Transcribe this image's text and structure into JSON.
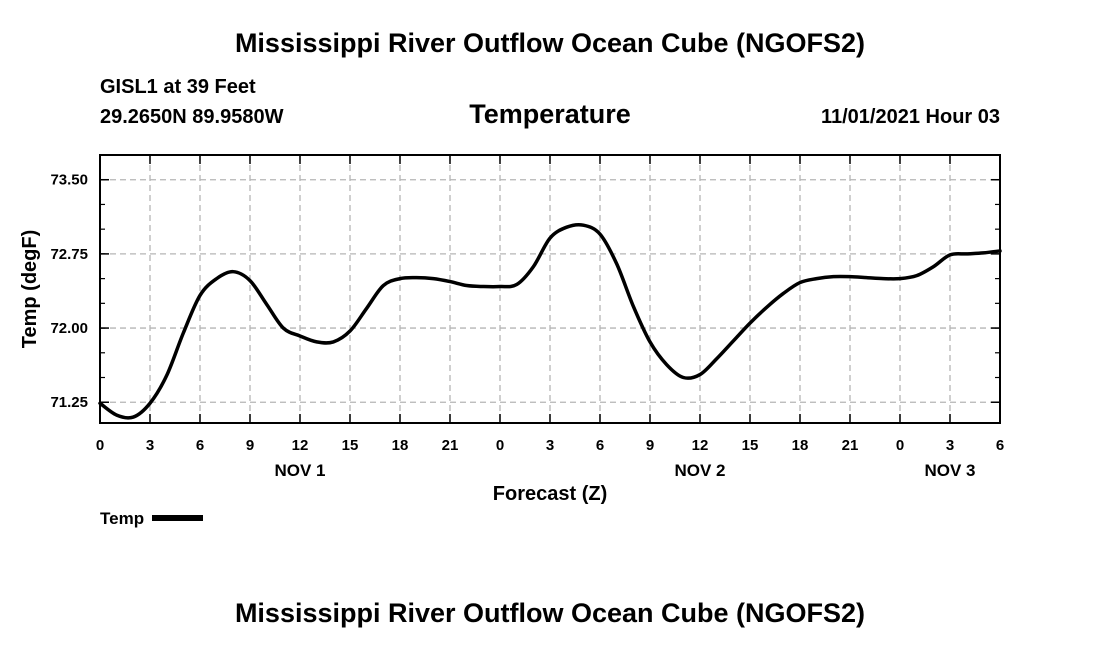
{
  "header": {
    "title": "Mississippi River Outflow Ocean Cube (NGOFS2)",
    "station": "GISL1 at 39 Feet",
    "coords": "29.2650N  89.9580W",
    "subtitle": "Temperature",
    "datetime": "11/01/2021 Hour 03"
  },
  "footer": {
    "title": "Mississippi River Outflow Ocean Cube (NGOFS2)"
  },
  "legend": {
    "label": "Temp",
    "color": "#000000"
  },
  "chart_data": {
    "type": "line",
    "title": "Temperature",
    "xlabel": "Forecast (Z)",
    "ylabel": "Temp (degF)",
    "xlim": [
      0,
      54
    ],
    "ylim": [
      71.04,
      73.75
    ],
    "yticks": [
      71.25,
      72.0,
      72.75,
      73.5
    ],
    "ytick_labels": [
      "71.25",
      "72.00",
      "72.75",
      "73.50"
    ],
    "xticks": [
      0,
      3,
      6,
      9,
      12,
      15,
      18,
      21,
      24,
      27,
      30,
      33,
      36,
      39,
      42,
      45,
      48,
      51,
      54
    ],
    "xtick_labels": [
      "0",
      "3",
      "6",
      "9",
      "12",
      "15",
      "18",
      "21",
      "0",
      "3",
      "6",
      "9",
      "12",
      "15",
      "18",
      "21",
      "0",
      "3",
      "6"
    ],
    "day_labels": [
      {
        "x": 12,
        "label": "NOV 1"
      },
      {
        "x": 36,
        "label": "NOV 2"
      },
      {
        "x": 51,
        "label": "NOV 3"
      }
    ],
    "grid": true,
    "series": [
      {
        "name": "Temp",
        "color": "#000000",
        "x": [
          0,
          1,
          2,
          3,
          4,
          5,
          6,
          7,
          8,
          9,
          10,
          11,
          12,
          13,
          14,
          15,
          16,
          17,
          18,
          19,
          20,
          21,
          22,
          23,
          24,
          25,
          26,
          27,
          28,
          29,
          30,
          31,
          32,
          33,
          34,
          35,
          36,
          37,
          38,
          39,
          40,
          41,
          42,
          43,
          44,
          45,
          46,
          47,
          48,
          49,
          50,
          51,
          52,
          53,
          54
        ],
        "values": [
          71.24,
          71.12,
          71.1,
          71.24,
          71.52,
          71.95,
          72.33,
          72.5,
          72.57,
          72.48,
          72.24,
          72.0,
          71.92,
          71.86,
          71.86,
          71.97,
          72.2,
          72.43,
          72.5,
          72.51,
          72.5,
          72.47,
          72.43,
          72.42,
          72.42,
          72.44,
          72.62,
          72.91,
          73.02,
          73.04,
          72.95,
          72.65,
          72.22,
          71.86,
          71.63,
          71.5,
          71.53,
          71.69,
          71.87,
          72.05,
          72.21,
          72.35,
          72.46,
          72.5,
          72.52,
          72.52,
          72.51,
          72.5,
          72.5,
          72.53,
          72.62,
          72.74,
          72.75,
          72.76,
          72.78
        ]
      }
    ]
  }
}
